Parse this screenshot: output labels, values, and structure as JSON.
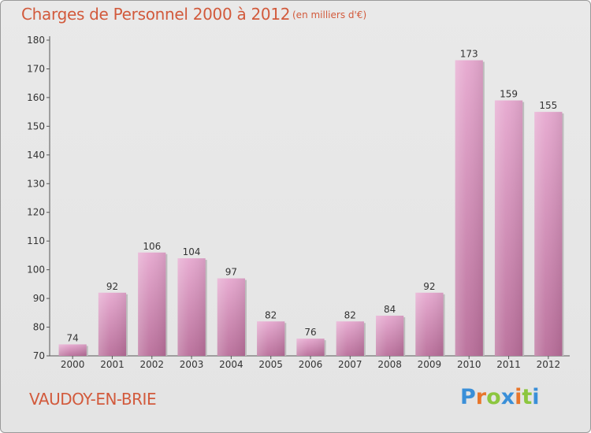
{
  "chart_data": {
    "type": "bar",
    "title": "Charges de Personnel 2000 à 2012",
    "subtitle": "(en milliers d'€)",
    "categories": [
      "2000",
      "2001",
      "2002",
      "2003",
      "2004",
      "2005",
      "2006",
      "2007",
      "2008",
      "2009",
      "2010",
      "2011",
      "2012"
    ],
    "values": [
      74,
      92,
      106,
      104,
      97,
      82,
      76,
      82,
      84,
      92,
      173,
      159,
      155
    ],
    "ylim": [
      70,
      180
    ],
    "yticks": [
      70,
      80,
      90,
      100,
      110,
      120,
      130,
      140,
      150,
      160,
      170,
      180
    ],
    "xlabel": "",
    "ylabel": "",
    "grid": false,
    "bar_color": "#d98fba"
  },
  "footer": {
    "commune": "VAUDOY-EN-BRIE",
    "logo_text": "Proxiti"
  },
  "colors": {
    "title": "#d25a3c",
    "logo_letters": [
      "#3a8fd8",
      "#e8762b",
      "#8cc63f",
      "#3a8fd8",
      "#e8762b",
      "#8cc63f",
      "#3a8fd8"
    ]
  }
}
